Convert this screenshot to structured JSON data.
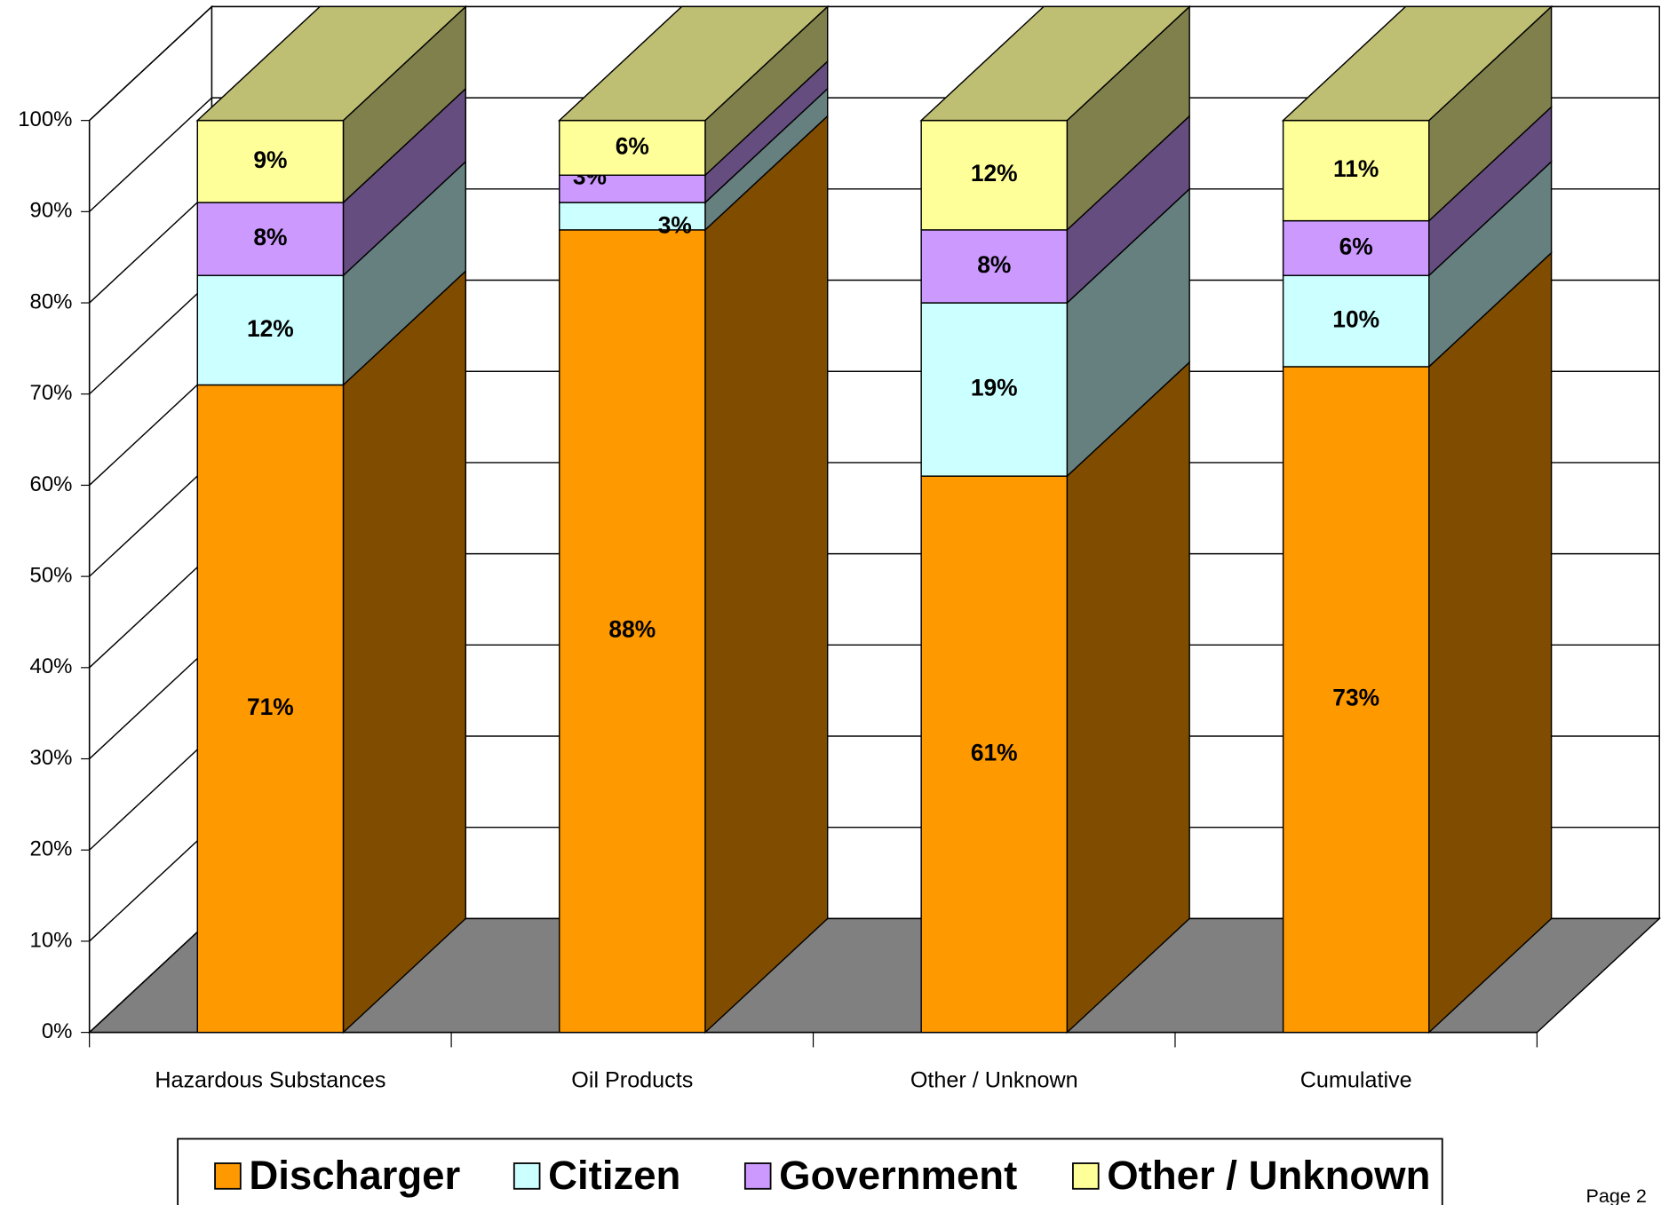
{
  "chart_data": {
    "type": "bar3d_stacked",
    "categories": [
      "Hazardous Substances",
      "Oil Products",
      "Other / Unknown",
      "Cumulative"
    ],
    "series": [
      {
        "name": "Discharger",
        "color": "#ff9900",
        "values": [
          71,
          88,
          61,
          73
        ],
        "value_labels": [
          "71%",
          "88%",
          "61%",
          "73%"
        ]
      },
      {
        "name": "Citizen",
        "color": "#ccffff",
        "values": [
          12,
          3,
          19,
          10
        ],
        "value_labels": [
          "12%",
          "3%",
          "19%",
          "10%"
        ]
      },
      {
        "name": "Government",
        "color": "#cc99ff",
        "values": [
          8,
          3,
          8,
          6
        ],
        "value_labels": [
          "8%",
          "3%",
          "8%",
          "6%"
        ]
      },
      {
        "name": "Other / Unknown",
        "color": "#ffff99",
        "values": [
          9,
          6,
          12,
          11
        ],
        "value_labels": [
          "9%",
          "6%",
          "12%",
          "11%"
        ]
      }
    ],
    "ylim": [
      0,
      100
    ],
    "yticks": [
      {
        "value": 0,
        "label": "0%"
      },
      {
        "value": 10,
        "label": "10%"
      },
      {
        "value": 20,
        "label": "20%"
      },
      {
        "value": 30,
        "label": "30%"
      },
      {
        "value": 40,
        "label": "40%"
      },
      {
        "value": 50,
        "label": "50%"
      },
      {
        "value": 60,
        "label": "60%"
      },
      {
        "value": 70,
        "label": "70%"
      },
      {
        "value": 80,
        "label": "80%"
      },
      {
        "value": 90,
        "label": "90%"
      },
      {
        "value": 100,
        "label": "100%"
      }
    ],
    "grid": true,
    "floor_color": "#808080",
    "legend": "bottom"
  },
  "footer": "Page 2"
}
